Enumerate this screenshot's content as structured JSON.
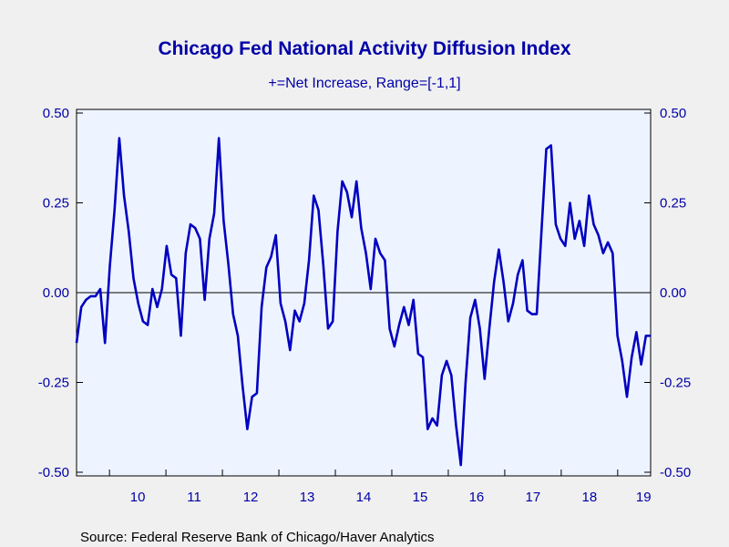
{
  "chart_data": {
    "type": "line",
    "title": "Chicago Fed National Activity Diffusion Index",
    "subtitle": "+=Net Increase, Range=[-1,1]",
    "source": "Source:  Federal Reserve Bank of Chicago/Haver Analytics",
    "ylim": [
      -0.5,
      0.5
    ],
    "y_ticks": [
      0.5,
      0.25,
      0.0,
      -0.25,
      -0.5
    ],
    "y_tick_labels": [
      "0.50",
      "0.25",
      "0.00",
      "-0.25",
      "-0.50"
    ],
    "x_tick_labels": [
      "10",
      "11",
      "12",
      "13",
      "14",
      "15",
      "16",
      "17",
      "18",
      "19"
    ],
    "x_start": "2009-06",
    "x_end": "2019-08",
    "zero_line": true,
    "grid": false,
    "line_color": "#0000c0",
    "series": [
      {
        "values": [
          -0.14,
          -0.04,
          -0.02,
          -0.01,
          -0.01,
          0.01,
          -0.14,
          0.07,
          0.23,
          0.43,
          0.27,
          0.17,
          0.04,
          -0.03,
          -0.08,
          -0.09,
          0.01,
          -0.04,
          0.01,
          0.13,
          0.05,
          0.04,
          -0.12,
          0.11,
          0.19,
          0.18,
          0.15,
          -0.02,
          0.15,
          0.22,
          0.43,
          0.2,
          0.08,
          -0.06,
          -0.12,
          -0.26,
          -0.38,
          -0.29,
          -0.28,
          -0.04,
          0.07,
          0.1,
          0.16,
          -0.03,
          -0.08,
          -0.16,
          -0.05,
          -0.08,
          -0.03,
          0.09,
          0.27,
          0.23,
          0.08,
          -0.1,
          -0.08,
          0.17,
          0.31,
          0.28,
          0.21,
          0.31,
          0.18,
          0.11,
          0.01,
          0.15,
          0.11,
          0.09,
          -0.1,
          -0.15,
          -0.09,
          -0.04,
          -0.09,
          -0.02,
          -0.17,
          -0.18,
          -0.38,
          -0.35,
          -0.37,
          -0.23,
          -0.19,
          -0.23,
          -0.37,
          -0.48,
          -0.25,
          -0.07,
          -0.02,
          -0.1,
          -0.24,
          -0.1,
          0.03,
          0.12,
          0.03,
          -0.08,
          -0.03,
          0.05,
          0.09,
          -0.05,
          -0.06,
          -0.06,
          0.17,
          0.4,
          0.41,
          0.19,
          0.15,
          0.13,
          0.25,
          0.15,
          0.2,
          0.13,
          0.27,
          0.19,
          0.16,
          0.11,
          0.14,
          0.11,
          -0.12,
          -0.19,
          -0.29,
          -0.18,
          -0.11,
          -0.2,
          -0.12,
          -0.12
        ]
      }
    ]
  }
}
